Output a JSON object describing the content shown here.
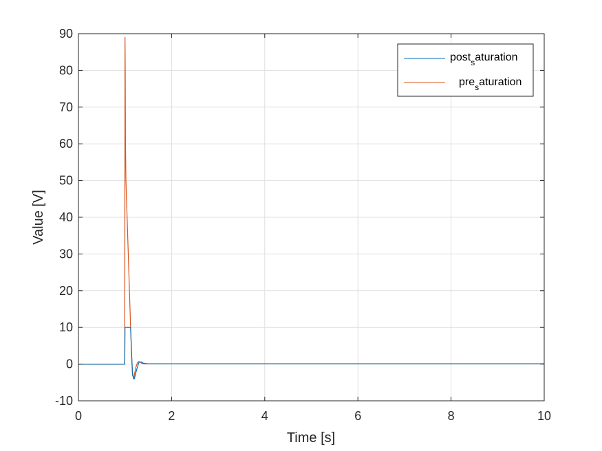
{
  "chart_data": {
    "type": "line",
    "xlabel": "Time [s]",
    "ylabel": "Value [V]",
    "xlim": [
      0,
      10
    ],
    "ylim": [
      -10,
      90
    ],
    "xticks": [
      0,
      2,
      4,
      6,
      8,
      10
    ],
    "yticks": [
      -10,
      0,
      10,
      20,
      30,
      40,
      50,
      60,
      70,
      80,
      90
    ],
    "xtick_labels": [
      "0",
      "2",
      "4",
      "6",
      "8",
      "10"
    ],
    "ytick_labels": [
      "-10",
      "0",
      "10",
      "20",
      "30",
      "40",
      "50",
      "60",
      "70",
      "80",
      "90"
    ],
    "grid": true,
    "legend_placement": "top-right",
    "series": [
      {
        "name": "post_saturation",
        "legend_main": "post",
        "legend_sub": "s",
        "legend_rest": "aturation",
        "color": "#0072BD",
        "x": [
          0,
          0.995,
          1.0,
          1.001,
          1.1,
          1.12,
          1.135,
          1.16,
          1.2,
          1.25,
          1.3,
          1.35,
          1.4,
          1.5,
          2,
          4,
          6,
          8,
          10
        ],
        "y": [
          0,
          0,
          10,
          10,
          10,
          10,
          5,
          -3,
          -4,
          -1.5,
          0.5,
          0.6,
          0.2,
          0.1,
          0.1,
          0.1,
          0.1,
          0.1,
          0.1
        ]
      },
      {
        "name": "pre_saturation",
        "legend_main": "pre",
        "legend_sub": "s",
        "legend_rest": "aturation",
        "color": "#D95319",
        "x": [
          0,
          0.995,
          1.0,
          1.005,
          1.01,
          1.02,
          1.05,
          1.08,
          1.1,
          1.12,
          1.14,
          1.16,
          1.18,
          1.2,
          1.23,
          1.27,
          1.3,
          1.35,
          1.4,
          1.5,
          2,
          4,
          6,
          8,
          10
        ],
        "y": [
          0,
          0,
          89,
          80,
          60,
          50,
          38,
          26,
          18,
          10,
          3,
          -2,
          -4,
          -3,
          -1,
          0.5,
          0.7,
          0.3,
          0.1,
          0.1,
          0.1,
          0.1,
          0.1,
          0.1,
          0.1
        ]
      }
    ]
  }
}
